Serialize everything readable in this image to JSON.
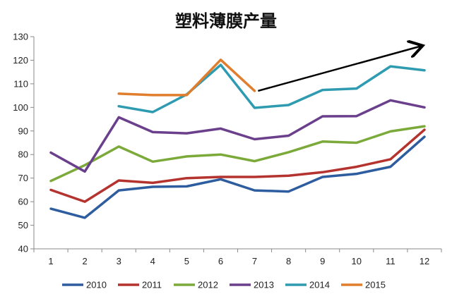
{
  "chart_data": {
    "type": "line",
    "title": "塑料薄膜产量",
    "xlabel": "",
    "ylabel": "",
    "x": [
      1,
      2,
      3,
      4,
      5,
      6,
      7,
      8,
      9,
      10,
      11,
      12
    ],
    "ylim": [
      40,
      130
    ],
    "yticks": [
      40,
      50,
      60,
      70,
      80,
      90,
      100,
      110,
      120,
      130
    ],
    "grid": false,
    "legend": "bottom",
    "series": [
      {
        "name": "2010",
        "color": "#2E5D9F",
        "values": [
          57,
          53.2,
          64.8,
          66.3,
          66.5,
          69.5,
          64.8,
          64.3,
          70.5,
          71.8,
          74.8,
          87.5
        ]
      },
      {
        "name": "2011",
        "color": "#B5332E",
        "values": [
          65,
          60,
          69,
          68,
          70,
          70.5,
          70.5,
          71,
          72.5,
          74.8,
          78,
          90.5
        ]
      },
      {
        "name": "2012",
        "color": "#7BAA3A",
        "values": [
          68.8,
          75.5,
          83.4,
          77,
          79.2,
          80,
          77.2,
          81,
          85.5,
          85,
          89.8,
          92
        ]
      },
      {
        "name": "2013",
        "color": "#6A3F8C",
        "values": [
          80.8,
          72.8,
          95.8,
          89.5,
          89,
          91,
          86.5,
          88,
          96.2,
          96.3,
          103,
          100
        ]
      },
      {
        "name": "2014",
        "color": "#2E9BB0",
        "values": [
          null,
          null,
          100.5,
          98,
          105.5,
          118,
          99.8,
          101,
          107.4,
          108,
          117.4,
          115.7
        ]
      },
      {
        "name": "2015",
        "color": "#E07E2E",
        "values": [
          null,
          null,
          105.8,
          105.2,
          105.2,
          120.2,
          107,
          null,
          null,
          null,
          null,
          null
        ]
      }
    ],
    "annotation": {
      "type": "arrow",
      "color": "#000000",
      "from": {
        "x": 7.1,
        "y": 107
      },
      "to": {
        "x": 11.9,
        "y": 126
      }
    }
  }
}
